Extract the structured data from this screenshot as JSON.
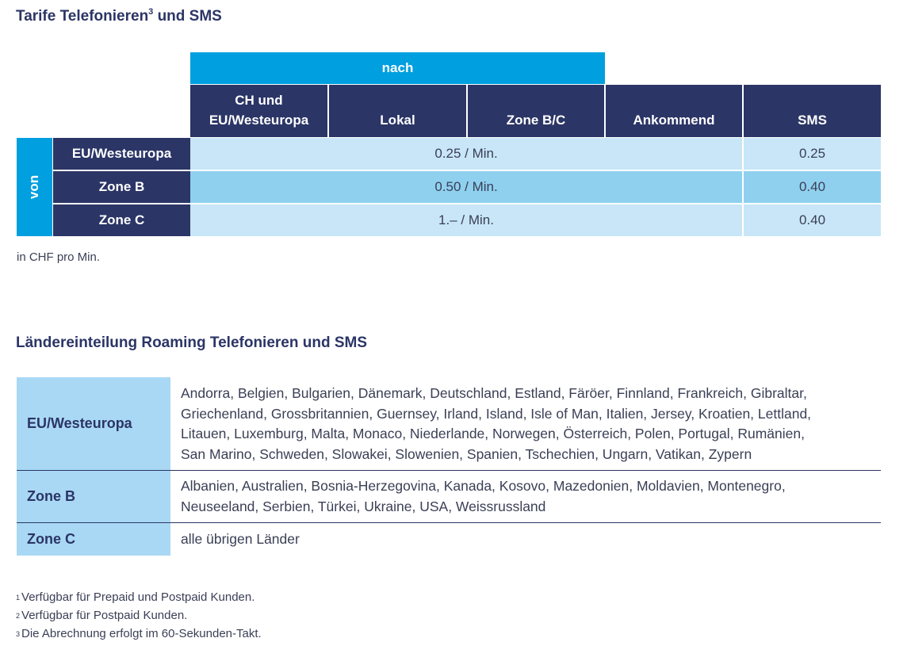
{
  "tariff": {
    "title": "Tarife Telefonieren",
    "title_sup": "3",
    "title_suffix": " und SMS",
    "nach": "nach",
    "von": "von",
    "columns": [
      "CH und EU/Westeuropa",
      "Lokal",
      "Zone B/C",
      "Ankommend",
      "SMS"
    ],
    "rows": [
      {
        "label": "EU/Westeuropa",
        "price": "0.25 / Min.",
        "sms": "0.25"
      },
      {
        "label": "Zone B",
        "price": "0.50 / Min.",
        "sms": "0.40"
      },
      {
        "label": "Zone C",
        "price": "1.– / Min.",
        "sms": "0.40"
      }
    ],
    "note": "in CHF pro Min."
  },
  "countries": {
    "title": "Ländereinteilung Roaming Telefonieren und SMS",
    "rows": [
      {
        "label": "EU/Westeuropa",
        "lines": [
          "Andorra, Belgien, Bulgarien, Dänemark, Deutschland, Estland, Färöer, Finnland, Frankreich, Gibraltar,",
          "Griechenland, Grossbritannien, Guernsey, Irland, Island, Isle of Man, Italien, Jersey, Kroatien, Lettland,",
          "Litauen, Luxemburg, Malta, Monaco, Niederlande, Norwegen, Österreich, Polen, Portugal, Rumänien,",
          "San Marino, Schweden, Slowakei, Slowenien, Spanien, Tschechien, Ungarn, Vatikan, Zypern"
        ]
      },
      {
        "label": "Zone B",
        "lines": [
          "Albanien, Australien, Bosnia-Herzegovina, Kanada, Kosovo, Mazedonien, Moldavien, Montenegro,",
          "Neuseeland, Serbien, Türkei, Ukraine, USA, Weissrussland"
        ]
      },
      {
        "label": "Zone C",
        "lines": [
          "alle übrigen Länder"
        ]
      }
    ]
  },
  "footnotes": [
    {
      "num": "1",
      "text": "Verfügbar für Prepaid und Postpaid Kunden."
    },
    {
      "num": "2",
      "text": "Verfügbar für Postpaid Kunden."
    },
    {
      "num": "3",
      "text": "Die Abrechnung erfolgt im 60-Sekunden-Takt."
    }
  ],
  "colors": {
    "navy": "#2b3566",
    "blue": "#009fdf",
    "light": "#c8e6f7",
    "mid": "#8fd0ef",
    "label_bg": "#a9d8f4"
  }
}
